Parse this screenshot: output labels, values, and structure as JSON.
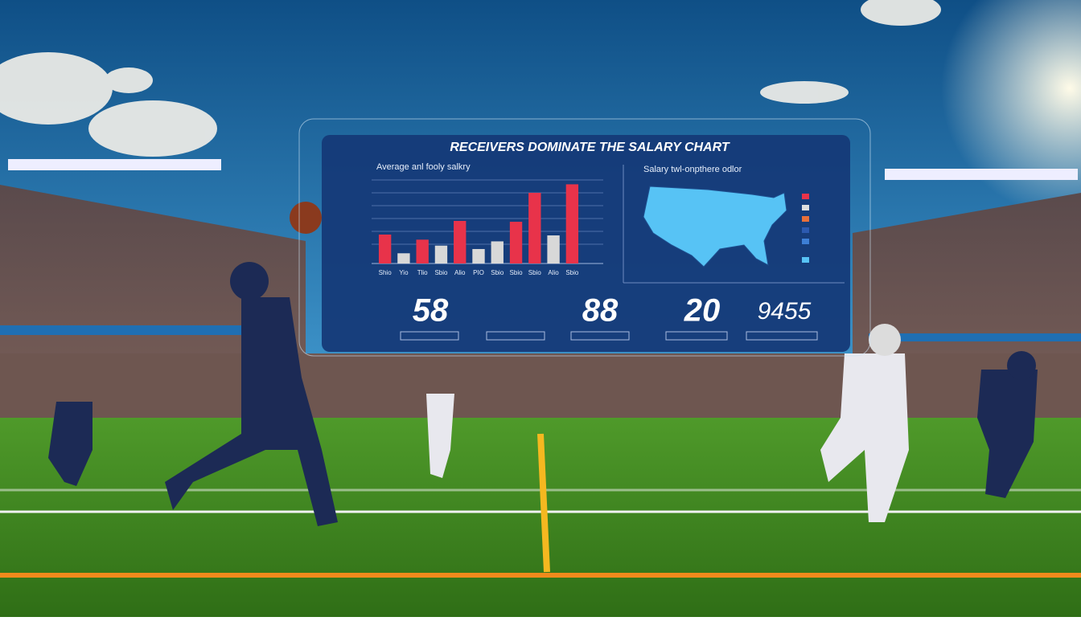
{
  "chart_data": {
    "type": "bar",
    "title": "RECEIVERS DOMINATE THE SALARY CHART",
    "subtitle": "Average anl fooly salkry",
    "categories": [
      "Shio",
      "Yio",
      "Tlio",
      "Sbio",
      "Alio",
      "PIO",
      "Sbio",
      "Sbio",
      "Sbio",
      "Alio",
      "Sbio"
    ],
    "values": [
      34,
      12,
      28,
      21,
      50,
      17,
      26,
      49,
      83,
      33,
      93
    ],
    "colors": [
      "#e8334a",
      "#d8d8d8",
      "#e8334a",
      "#d8d8d8",
      "#e8334a",
      "#d8d8d8",
      "#d8d8d8",
      "#e8334a",
      "#e8334a",
      "#d8d8d8",
      "#e8334a"
    ],
    "ylim": [
      0,
      100
    ]
  },
  "map_title": "Salary twl-onpthere odlor",
  "stats": [
    "58",
    "88",
    "20",
    "9455"
  ]
}
